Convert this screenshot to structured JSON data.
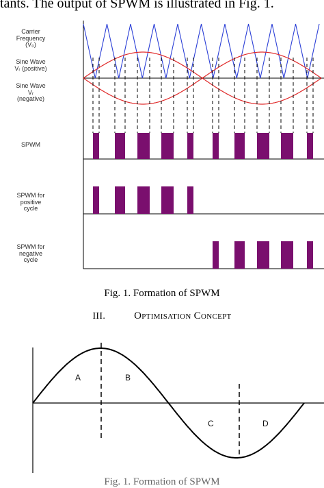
{
  "top_text": "tants. The output of SPWM is illustrated in Fig. 1.",
  "figure1": {
    "labels": {
      "carrier": [
        "Carrier",
        "Frequency",
        "(V₀)"
      ],
      "sine_pos": [
        "Sine Wave",
        "Vᵣ (positive)"
      ],
      "sine_neg": [
        "Sine Wave",
        "Vᵣ",
        "(negative)"
      ],
      "spwm": [
        "SPWM"
      ],
      "spwm_pos": [
        "SPWM for",
        "positive",
        "cycle"
      ],
      "spwm_neg": [
        "SPWM for",
        "negative",
        "cycle"
      ]
    },
    "caption": "Fig. 1. Formation of SPWM",
    "colors": {
      "carrier": "#2b3fd6",
      "sine": "#e02a2a",
      "pulse": "#7a0f6e"
    }
  },
  "section": {
    "number": "III.",
    "title": "Optimisation Concept"
  },
  "figure2": {
    "regions": [
      "A",
      "B",
      "C",
      "D"
    ],
    "caption": "Fig. 1. Formation of SPWM"
  }
}
